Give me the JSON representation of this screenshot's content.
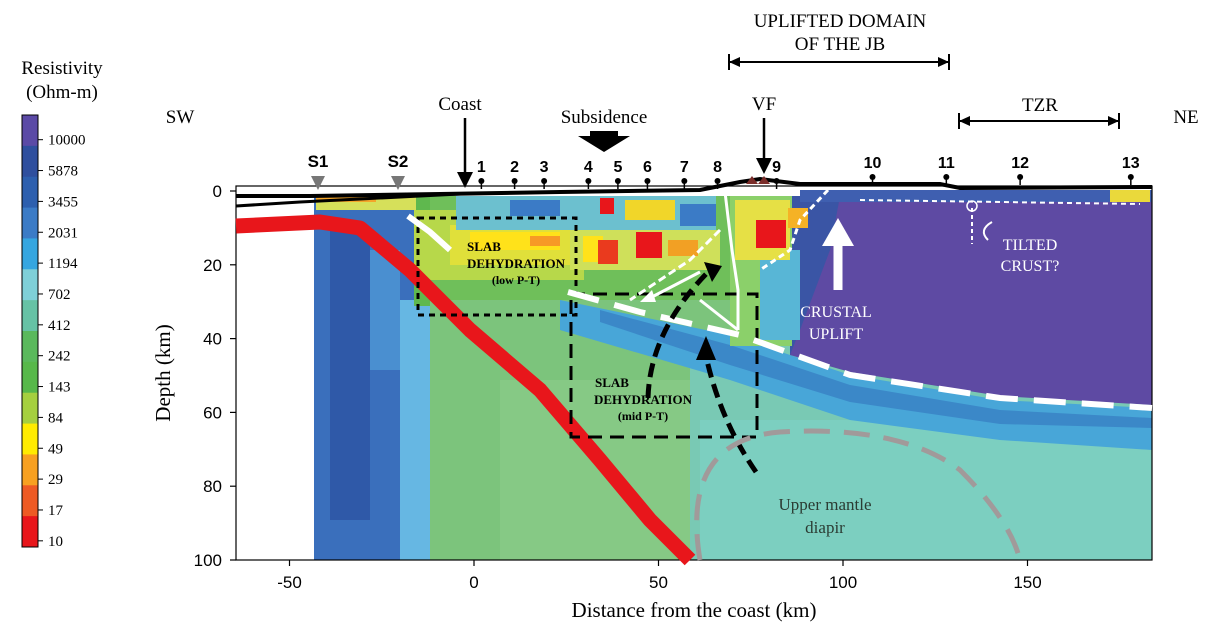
{
  "colorbar": {
    "title_line1": "Resistivity",
    "title_line2": "(Ohm-m)",
    "ticks": [
      "10000",
      "5878",
      "3455",
      "2031",
      "1194",
      "702",
      "412",
      "242",
      "143",
      "84",
      "49",
      "29",
      "17",
      "10"
    ],
    "colors": [
      "#5b4aa6",
      "#2f4f9e",
      "#2d5fae",
      "#3b7bc6",
      "#35a6e0",
      "#7fd0d8",
      "#66c2a5",
      "#5ab95c",
      "#57b84a",
      "#a5cf3f",
      "#ffeb00",
      "#f7a020",
      "#ee5a24",
      "#e8161b"
    ]
  },
  "axes": {
    "xlabel": "Distance from the coast (km)",
    "ylabel": "Depth (km)",
    "xticks": [
      "-50",
      "0",
      "50",
      "100",
      "150"
    ],
    "yticks": [
      "0",
      "20",
      "40",
      "60",
      "80",
      "100"
    ]
  },
  "labels": {
    "sw": "SW",
    "ne": "NE",
    "coast": "Coast",
    "subsidence": "Subsidence",
    "vf": "VF",
    "uplifted_line1": "UPLIFTED DOMAIN",
    "uplifted_line2": "OF THE JB",
    "tzr": "TZR",
    "slab_low_line1": "SLAB",
    "slab_low_line2": "DEHYDRATION",
    "slab_low_line3": "(low P-T)",
    "slab_mid_line1": "SLAB",
    "slab_mid_line2": "DEHYDRATION",
    "slab_mid_line3": "(mid P-T)",
    "crustal_line1": "CRUSTAL",
    "crustal_line2": "UPLIFT",
    "tilted_line1": "TILTED",
    "tilted_line2": "CRUST?",
    "mantle_line1": "Upper mantle",
    "mantle_line2": "diapir"
  },
  "stations": {
    "s_sites": [
      "S1",
      "S2"
    ],
    "numbered": [
      "1",
      "2",
      "3",
      "4",
      "5",
      "6",
      "7",
      "8",
      "9",
      "10",
      "11",
      "12",
      "13"
    ]
  }
}
